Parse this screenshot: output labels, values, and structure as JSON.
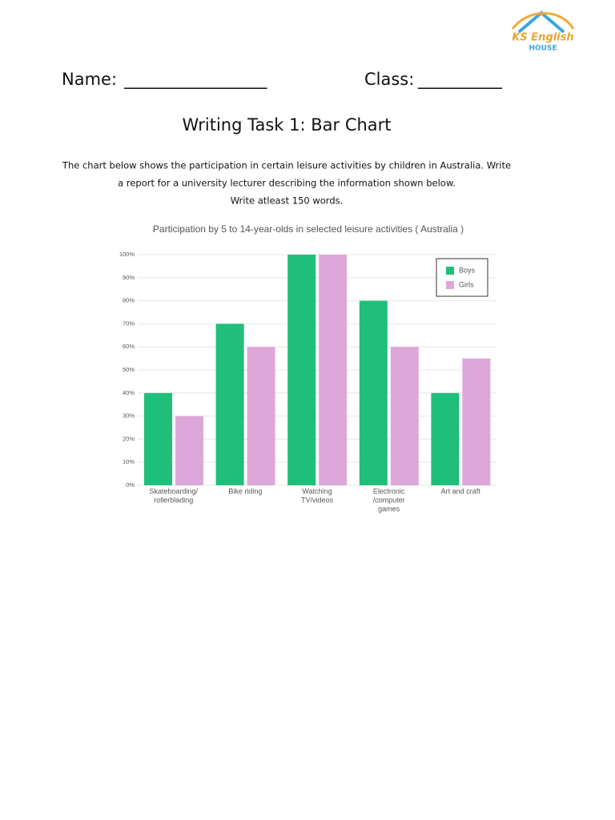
{
  "logo": {
    "line1": "KS English",
    "line2": "HOUSE"
  },
  "header": {
    "name_label": "Name:",
    "name_blank": "_________________",
    "class_label": "Class:",
    "class_blank": "__________"
  },
  "title": "Writing Task 1: Bar Chart",
  "instructions": [
    "The chart below shows the participation in certain leisure activities by children in Australia. Write",
    "a report for a university lecturer describing the information shown below.",
    "Write atleast 150 words."
  ],
  "chart_data": {
    "type": "bar",
    "title": "Participation by 5 to 14-year-olds in selected leisure activities ( Australia )",
    "categories": [
      [
        "Skateboarding/",
        "rollerblading"
      ],
      [
        "Bike riding"
      ],
      [
        "Watching",
        "TV/videos"
      ],
      [
        "Electronic",
        "/computer",
        "games"
      ],
      [
        "Art and craft"
      ]
    ],
    "series": [
      {
        "name": "Boys",
        "color": "#1fbe7a",
        "values": [
          40,
          70,
          100,
          80,
          40
        ]
      },
      {
        "name": "Girls",
        "color": "#dea7d9",
        "values": [
          30,
          60,
          100,
          60,
          55
        ]
      }
    ],
    "ylim": [
      0,
      100
    ],
    "yticks": [
      {
        "value": 0,
        "label": "0%"
      },
      {
        "value": 10,
        "label": "10%"
      },
      {
        "value": 20,
        "label": "20%"
      },
      {
        "value": 30,
        "label": "30%"
      },
      {
        "value": 40,
        "label": "40%"
      },
      {
        "value": 50,
        "label": "50%"
      },
      {
        "value": 60,
        "label": "60%"
      },
      {
        "value": 70,
        "label": "70%"
      },
      {
        "value": 80,
        "label": "80%"
      },
      {
        "value": 90,
        "label": "90%"
      },
      {
        "value": 100,
        "label": "100%"
      }
    ],
    "grid": true,
    "legend": "top-right"
  }
}
